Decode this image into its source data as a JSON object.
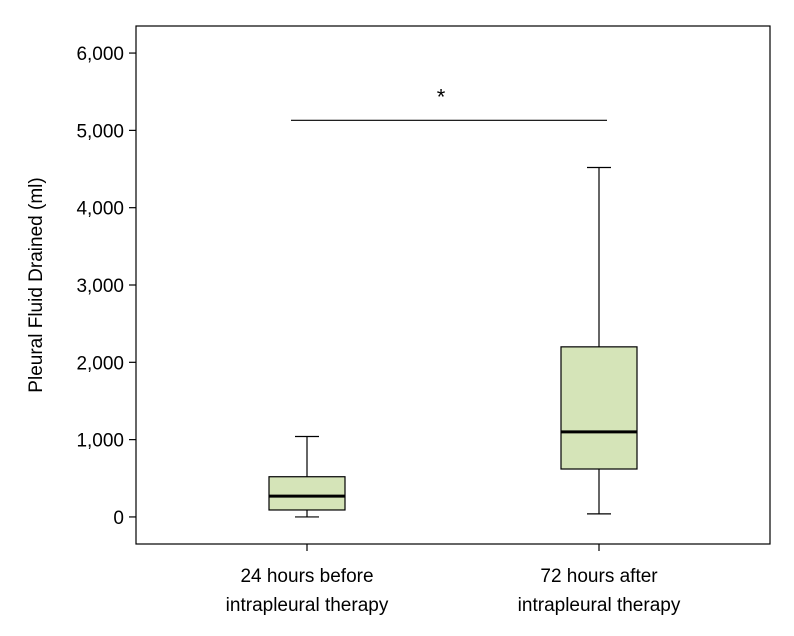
{
  "chart_data": {
    "type": "boxplot",
    "ylabel": "Pleural Fluid Drained (ml)",
    "ylim": [
      -350,
      6350
    ],
    "yticks": [
      0,
      1000,
      2000,
      3000,
      4000,
      5000,
      6000
    ],
    "ytick_labels": [
      "0",
      "1,000",
      "2,000",
      "3,000",
      "4,000",
      "5,000",
      "6,000"
    ],
    "grid": false,
    "box_color": "#d5e4b8",
    "line_color": "#000000",
    "categories": [
      [
        "24 hours before",
        "intrapleural therapy"
      ],
      [
        "72 hours after",
        "intrapleural therapy"
      ]
    ],
    "boxes": [
      {
        "whisker_low": 0,
        "q1": 90,
        "median": 270,
        "q3": 520,
        "whisker_high": 1040
      },
      {
        "whisker_low": 40,
        "q1": 620,
        "median": 1100,
        "q3": 2200,
        "whisker_high": 4520
      }
    ],
    "significance": {
      "from": 0,
      "to": 1,
      "y": 5130,
      "label": "*"
    }
  }
}
